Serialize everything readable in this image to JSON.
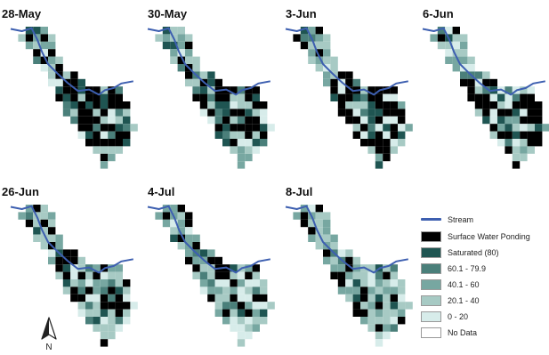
{
  "panels": [
    {
      "date": "28-May"
    },
    {
      "date": "30-May"
    },
    {
      "date": "3-Jun"
    },
    {
      "date": "6-Jun"
    },
    {
      "date": "26-Jun"
    },
    {
      "date": "4-Jul"
    },
    {
      "date": "8-Jul"
    }
  ],
  "legend": {
    "stream": {
      "label": "Stream",
      "color": "#3d5fb0"
    },
    "classes": [
      {
        "label": "Surface Water Ponding",
        "color": "#000000"
      },
      {
        "label": "Saturated (80)",
        "color": "#1f5552"
      },
      {
        "label": "60.1 - 79.9",
        "color": "#4a7f7a"
      },
      {
        "label": "40.1 - 60",
        "color": "#77a7a1"
      },
      {
        "label": "20.1 - 40",
        "color": "#a7cac4"
      },
      {
        "label": "0 - 20",
        "color": "#d7ecea"
      },
      {
        "label": "No Data",
        "color": "#ffffff"
      }
    ]
  },
  "north_arrow": {
    "label": "N",
    "icon": "north-arrow-icon"
  }
}
